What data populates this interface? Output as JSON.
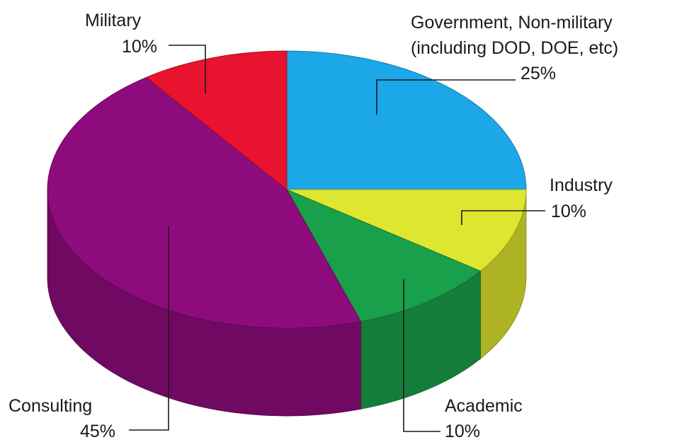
{
  "chart_data": {
    "type": "pie",
    "title": "",
    "style": "3d",
    "start_angle_deg": 0,
    "direction": "clockwise",
    "slices": [
      {
        "name": "Government, Non-military (including DOD, DOE, etc)",
        "label_lines": [
          "Government, Non-military",
          "(including DOD, DOE, etc)"
        ],
        "percent_label": "25%",
        "value": 25,
        "color": "#1ba7e8"
      },
      {
        "name": "Industry",
        "label_lines": [
          "Industry"
        ],
        "percent_label": "10%",
        "value": 10,
        "color": "#dfe630"
      },
      {
        "name": "Academic",
        "label_lines": [
          "Academic"
        ],
        "percent_label": "10%",
        "value": 10,
        "color": "#19a04a"
      },
      {
        "name": "Consulting",
        "label_lines": [
          "Consulting"
        ],
        "percent_label": "45%",
        "value": 45,
        "color": "#8e0b7d"
      },
      {
        "name": "Military",
        "label_lines": [
          "Military"
        ],
        "percent_label": "10%",
        "value": 10,
        "color": "#e8132e"
      }
    ]
  }
}
